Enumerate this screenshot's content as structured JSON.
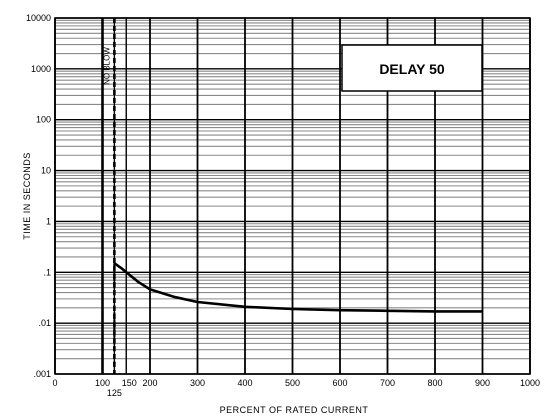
{
  "chart_data": {
    "type": "line",
    "title": "DELAY 50",
    "xlabel": "PERCENT OF RATED CURRENT",
    "ylabel": "TIME IN SECONDS",
    "x_scale": "linear",
    "y_scale": "log",
    "xlim": [
      0,
      1000
    ],
    "ylim": [
      0.001,
      10000
    ],
    "x_ticks": [
      0,
      100,
      200,
      300,
      400,
      500,
      600,
      700,
      800,
      900,
      1000
    ],
    "x_tick_labels": [
      "0",
      "100",
      "200",
      "300",
      "400",
      "500",
      "600",
      "700",
      "800",
      "900",
      "1000"
    ],
    "y_ticks": [
      0.001,
      0.01,
      0.1,
      1,
      10,
      100,
      1000,
      10000
    ],
    "y_tick_labels": [
      ".001",
      ".01",
      ".1",
      "1",
      "10",
      "100",
      "1000",
      "10000"
    ],
    "extra_x_ticks": [
      125,
      150
    ],
    "extra_x_tick_labels": [
      "125",
      "150"
    ],
    "reference_lines": [
      {
        "x": 100,
        "style": "solid",
        "label": "NO BLOW"
      },
      {
        "x": 125,
        "style": "dashed",
        "label": ""
      }
    ],
    "grid": true,
    "series": [
      {
        "x": [
          125,
          130,
          140,
          150,
          175,
          200,
          250,
          300,
          400,
          500,
          600,
          700,
          800,
          900
        ],
        "y": [
          0.15,
          0.14,
          0.12,
          0.1,
          0.065,
          0.046,
          0.033,
          0.026,
          0.021,
          0.019,
          0.018,
          0.0175,
          0.017,
          0.017
        ]
      }
    ]
  }
}
